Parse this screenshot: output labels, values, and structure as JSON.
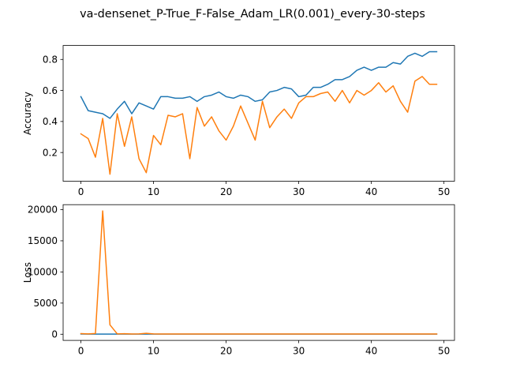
{
  "figure_title": "va-densenet_P-True_F-False_Adam_LR(0.001)_every-30-steps",
  "colors": {
    "series_1": "#1f77b4",
    "series_2": "#ff7f0e"
  },
  "chart_data": [
    {
      "type": "line",
      "ylabel": "Accuracy",
      "xlabel": "",
      "xlim": [
        -2.45,
        51.45
      ],
      "ylim": [
        0.015,
        0.89
      ],
      "xticks": [
        0,
        10,
        20,
        30,
        40,
        50
      ],
      "xtick_labels": [
        "0",
        "10",
        "20",
        "30",
        "40",
        "50"
      ],
      "yticks": [
        0.2,
        0.4,
        0.6,
        0.8
      ],
      "ytick_labels": [
        "0.2",
        "0.4",
        "0.6",
        "0.8"
      ],
      "grid": false,
      "x": [
        0,
        1,
        2,
        3,
        4,
        5,
        6,
        7,
        8,
        9,
        10,
        11,
        12,
        13,
        14,
        15,
        16,
        17,
        18,
        19,
        20,
        21,
        22,
        23,
        24,
        25,
        26,
        27,
        28,
        29,
        30,
        31,
        32,
        33,
        34,
        35,
        36,
        37,
        38,
        39,
        40,
        41,
        42,
        43,
        44,
        45,
        46,
        47,
        48,
        49
      ],
      "series": [
        {
          "color": "#1f77b4",
          "values": [
            0.56,
            0.47,
            0.46,
            0.45,
            0.42,
            0.48,
            0.53,
            0.45,
            0.52,
            0.5,
            0.48,
            0.56,
            0.56,
            0.55,
            0.55,
            0.56,
            0.53,
            0.56,
            0.57,
            0.59,
            0.56,
            0.55,
            0.57,
            0.56,
            0.53,
            0.54,
            0.59,
            0.6,
            0.62,
            0.61,
            0.56,
            0.57,
            0.62,
            0.62,
            0.64,
            0.67,
            0.67,
            0.69,
            0.73,
            0.75,
            0.73,
            0.75,
            0.75,
            0.78,
            0.77,
            0.82,
            0.84,
            0.82,
            0.85,
            0.85
          ]
        },
        {
          "color": "#ff7f0e",
          "values": [
            0.32,
            0.29,
            0.17,
            0.42,
            0.06,
            0.45,
            0.24,
            0.43,
            0.16,
            0.07,
            0.31,
            0.25,
            0.44,
            0.43,
            0.45,
            0.16,
            0.49,
            0.37,
            0.43,
            0.34,
            0.28,
            0.37,
            0.5,
            0.39,
            0.28,
            0.53,
            0.36,
            0.43,
            0.48,
            0.42,
            0.52,
            0.56,
            0.56,
            0.58,
            0.59,
            0.53,
            0.6,
            0.52,
            0.6,
            0.57,
            0.6,
            0.65,
            0.59,
            0.63,
            0.53,
            0.46,
            0.66,
            0.69,
            0.64,
            0.64
          ]
        }
      ]
    },
    {
      "type": "line",
      "ylabel": "Loss",
      "xlabel": "",
      "xlim": [
        -2.45,
        51.45
      ],
      "ylim": [
        -990,
        20800
      ],
      "xticks": [
        0,
        10,
        20,
        30,
        40,
        50
      ],
      "xtick_labels": [
        "0",
        "10",
        "20",
        "30",
        "40",
        "50"
      ],
      "yticks": [
        0,
        5000,
        10000,
        15000,
        20000
      ],
      "ytick_labels": [
        "0",
        "5000",
        "10000",
        "15000",
        "20000"
      ],
      "grid": false,
      "x": [
        0,
        1,
        2,
        3,
        4,
        5,
        6,
        7,
        8,
        9,
        10,
        11,
        12,
        13,
        14,
        15,
        16,
        17,
        18,
        19,
        20,
        21,
        22,
        23,
        24,
        25,
        26,
        27,
        28,
        29,
        30,
        31,
        32,
        33,
        34,
        35,
        36,
        37,
        38,
        39,
        40,
        41,
        42,
        43,
        44,
        45,
        46,
        47,
        48,
        49
      ],
      "series": [
        {
          "color": "#1f77b4",
          "values": [
            30,
            20,
            20,
            20,
            20,
            20,
            20,
            20,
            20,
            20,
            20,
            20,
            20,
            20,
            20,
            20,
            20,
            20,
            20,
            20,
            20,
            20,
            20,
            20,
            20,
            20,
            20,
            20,
            20,
            20,
            20,
            20,
            20,
            20,
            20,
            20,
            20,
            20,
            20,
            20,
            20,
            20,
            20,
            20,
            20,
            20,
            20,
            20,
            20,
            20
          ]
        },
        {
          "color": "#ff7f0e",
          "values": [
            100,
            50,
            120,
            19800,
            1500,
            60,
            80,
            40,
            60,
            150,
            50,
            40,
            40,
            40,
            40,
            40,
            40,
            40,
            40,
            40,
            40,
            40,
            40,
            40,
            40,
            40,
            40,
            40,
            40,
            40,
            40,
            40,
            40,
            40,
            40,
            40,
            40,
            40,
            40,
            40,
            40,
            40,
            40,
            40,
            40,
            40,
            40,
            40,
            40,
            40
          ]
        }
      ]
    }
  ]
}
